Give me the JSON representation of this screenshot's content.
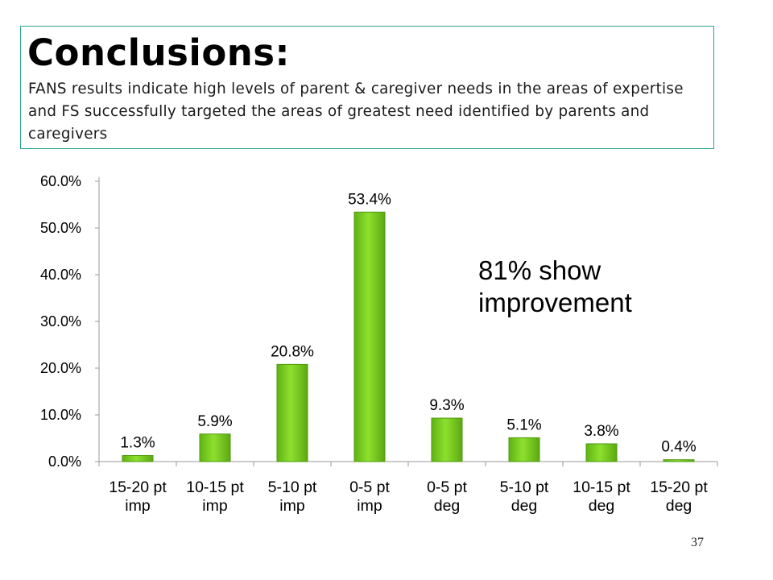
{
  "slide": {
    "title": "Conclusions:",
    "subtitle": "FANS results indicate high levels of parent & caregiver needs in the areas of expertise and FS successfully targeted the areas of greatest need identified by parents and caregivers",
    "annotation": "81% show\nimprovement",
    "slide_number": "37"
  },
  "colors": {
    "bar_fill": "#7ed321",
    "bar_stroke": "#4f9a0f",
    "border": "#2aa58f"
  },
  "chart_data": {
    "type": "bar",
    "categories": [
      [
        "15-20 pt",
        "imp"
      ],
      [
        "10-15 pt",
        "imp"
      ],
      [
        "5-10 pt",
        "imp"
      ],
      [
        "0-5 pt",
        "imp"
      ],
      [
        "0-5 pt",
        "deg"
      ],
      [
        "5-10 pt",
        "deg"
      ],
      [
        "10-15 pt",
        "deg"
      ],
      [
        "15-20 pt",
        "deg"
      ]
    ],
    "values": [
      1.3,
      5.9,
      20.8,
      53.4,
      9.3,
      5.1,
      3.8,
      0.4
    ],
    "data_labels": [
      "1.3%",
      "5.9%",
      "20.8%",
      "53.4%",
      "9.3%",
      "5.1%",
      "3.8%",
      "0.4%"
    ],
    "y_ticks": [
      0,
      10,
      20,
      30,
      40,
      50,
      60
    ],
    "y_tick_labels": [
      "0.0%",
      "10.0%",
      "20.0%",
      "30.0%",
      "40.0%",
      "50.0%",
      "60.0%"
    ],
    "ylim": [
      0,
      60
    ],
    "title": "",
    "xlabel": "",
    "ylabel": "",
    "grid": false,
    "legend": "none"
  }
}
